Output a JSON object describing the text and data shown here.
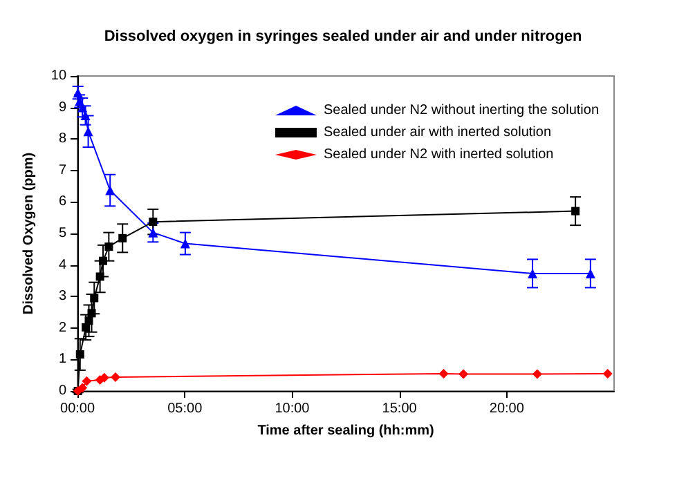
{
  "chart_data": {
    "type": "line",
    "title": "Dissolved oxygen in syringes sealed under air and under nitrogen",
    "xlabel": "Time after sealing (hh:mm)",
    "ylabel": "Dissolved Oxygen (ppm)",
    "xlim": [
      0,
      25
    ],
    "xticks": [
      {
        "value": 0,
        "label": "00:00"
      },
      {
        "value": 5,
        "label": "05:00"
      },
      {
        "value": 10,
        "label": "10:00"
      },
      {
        "value": 15,
        "label": "15:00"
      },
      {
        "value": 20,
        "label": "20:00"
      }
    ],
    "ylim": [
      0,
      10
    ],
    "yticks": [
      0,
      1,
      2,
      3,
      4,
      5,
      6,
      7,
      8,
      9,
      10
    ],
    "grid": false,
    "legend": "top right",
    "line_style": "solid",
    "series": [
      {
        "name": "Sealed under N2 without inerting the solution",
        "color": "#0000ff",
        "marker": "triangle",
        "x": [
          0.02,
          0.1,
          0.23,
          0.37,
          0.5,
          1.52,
          3.52,
          5.02,
          21.2,
          23.9
        ],
        "values": [
          9.47,
          9.2,
          9.0,
          8.75,
          8.24,
          6.37,
          5.03,
          4.68,
          3.73,
          3.73
        ],
        "errors": [
          0.2,
          0.2,
          0.3,
          0.3,
          0.5,
          0.5,
          0.3,
          0.35,
          0.45,
          0.45
        ]
      },
      {
        "name": "Sealed under air with inerted solution",
        "color": "#000000",
        "marker": "square",
        "x": [
          0.02,
          0.12,
          0.39,
          0.53,
          0.66,
          0.78,
          1.05,
          1.19,
          1.46,
          2.1,
          3.52,
          23.2
        ],
        "values": [
          0,
          1.16,
          2.02,
          2.23,
          2.47,
          2.95,
          3.63,
          4.13,
          4.58,
          4.85,
          5.37,
          5.71
        ],
        "errors": [
          0.05,
          0.5,
          0.4,
          0.5,
          0.6,
          0.5,
          0.5,
          0.5,
          0.45,
          0.45,
          0.4,
          0.45
        ]
      },
      {
        "name": "Sealed under N2 with inerted solution",
        "color": "#ff0000",
        "marker": "diamond",
        "x": [
          0.02,
          0.23,
          0.43,
          1.05,
          1.25,
          1.77,
          17.06,
          17.98,
          21.42,
          24.7
        ],
        "values": [
          0,
          0.1,
          0.31,
          0.35,
          0.42,
          0.44,
          0.55,
          0.54,
          0.54,
          0.55
        ]
      }
    ]
  }
}
